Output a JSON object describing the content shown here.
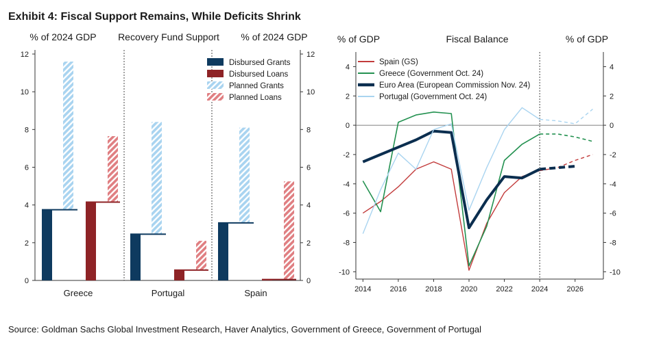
{
  "exhibit_title": "Exhibit 4: Fiscal Support Remains, While Deficits Shrink",
  "source": "Source: Goldman Sachs Global Investment Research, Haver Analytics, Government of Greece, Government of Portugal",
  "colors": {
    "disbursed_grants": "#0e3a5f",
    "disbursed_loans": "#8e2326",
    "planned_grants": "#a9d4f0",
    "planned_loans": "#e07f82",
    "spain": "#c23b3b",
    "greece": "#239150",
    "euro_area": "#0b2e4f",
    "portugal": "#a9d4f0"
  },
  "chart_data": [
    {
      "type": "bar",
      "title": "Recovery Fund Support",
      "ylabel_left": "% of 2024 GDP",
      "ylabel_right": "% of 2024 GDP",
      "ylim": [
        0,
        12
      ],
      "yticks": [
        0,
        2,
        4,
        6,
        8,
        10,
        12
      ],
      "categories": [
        "Greece",
        "Portugal",
        "Spain"
      ],
      "legend_position": "top-right",
      "series": [
        {
          "name": "Disbursed Grants",
          "values": [
            3.75,
            2.45,
            3.05
          ]
        },
        {
          "name": "Disbursed Loans",
          "values": [
            4.15,
            0.55,
            0.05
          ]
        },
        {
          "name": "Planned Grants",
          "values": [
            11.6,
            8.4,
            8.1
          ]
        },
        {
          "name": "Planned Loans",
          "values": [
            7.65,
            2.1,
            5.25
          ]
        }
      ]
    },
    {
      "type": "line",
      "title": "Fiscal Balance",
      "ylabel_left": "% of GDP",
      "ylabel_right": "% of GDP",
      "xlim": [
        2013.6,
        2027.6
      ],
      "ylim": [
        -10.5,
        5
      ],
      "xticks": [
        2014,
        2016,
        2018,
        2020,
        2022,
        2024,
        2026
      ],
      "yticks": [
        -10,
        -8,
        -6,
        -4,
        -2,
        0,
        2,
        4
      ],
      "zero_line": true,
      "forecast_start": 2024,
      "legend_position": "top-left",
      "series": [
        {
          "name": "Spain (GS)",
          "x": [
            2014,
            2015,
            2016,
            2017,
            2018,
            2019,
            2020,
            2021,
            2022,
            2023,
            2024,
            2025,
            2026,
            2027
          ],
          "y": [
            -6.0,
            -5.2,
            -4.2,
            -3.0,
            -2.5,
            -3.0,
            -9.9,
            -6.7,
            -4.6,
            -3.5,
            -3.1,
            -2.9,
            -2.4,
            -2.0
          ]
        },
        {
          "name": "Greece (Government Oct. 24)",
          "x": [
            2014,
            2015,
            2016,
            2017,
            2018,
            2019,
            2020,
            2021,
            2022,
            2023,
            2024,
            2025,
            2026,
            2027
          ],
          "y": [
            -3.8,
            -5.9,
            0.2,
            0.7,
            0.9,
            0.8,
            -9.6,
            -6.9,
            -2.4,
            -1.3,
            -0.6,
            -0.6,
            -0.8,
            -1.1
          ]
        },
        {
          "name": "Euro Area (European Commission Nov. 24)",
          "x": [
            2014,
            2015,
            2016,
            2017,
            2018,
            2019,
            2020,
            2021,
            2022,
            2023,
            2024,
            2025,
            2026
          ],
          "y": [
            -2.5,
            -2.0,
            -1.5,
            -1.0,
            -0.4,
            -0.5,
            -7.0,
            -5.1,
            -3.5,
            -3.6,
            -3.0,
            -2.9,
            -2.8
          ]
        },
        {
          "name": "Portugal (Government Oct. 24)",
          "x": [
            2014,
            2015,
            2016,
            2017,
            2018,
            2019,
            2020,
            2021,
            2022,
            2023,
            2024,
            2025,
            2026,
            2027
          ],
          "y": [
            -7.4,
            -4.4,
            -1.9,
            -3.0,
            -0.3,
            0.1,
            -5.8,
            -2.9,
            -0.3,
            1.2,
            0.4,
            0.3,
            0.1,
            1.1
          ]
        }
      ]
    }
  ]
}
